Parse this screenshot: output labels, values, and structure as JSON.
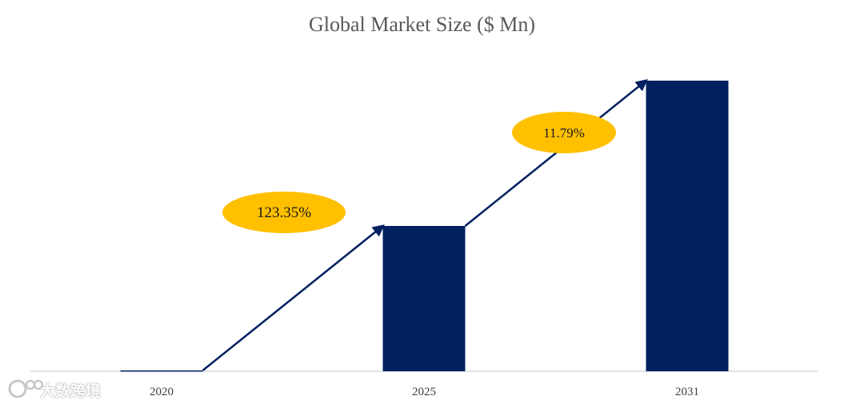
{
  "chart_data": {
    "type": "bar",
    "title": "Global Market Size ($ Mn)",
    "categories": [
      "2020",
      "2025",
      "2031"
    ],
    "values": [
      0.6,
      100,
      200
    ],
    "ylim": [
      0,
      200
    ],
    "grid": false,
    "legend": "none",
    "bar_color": "#002060",
    "growth_annotations": [
      {
        "label": "123.35%",
        "from": "2020",
        "to": "2025"
      },
      {
        "label": "11.79%",
        "from": "2025",
        "to": "2031"
      }
    ],
    "annotation_color": "#FFC000",
    "arrow_color": "#002060"
  },
  "watermark": {
    "text": "大数跨境"
  }
}
